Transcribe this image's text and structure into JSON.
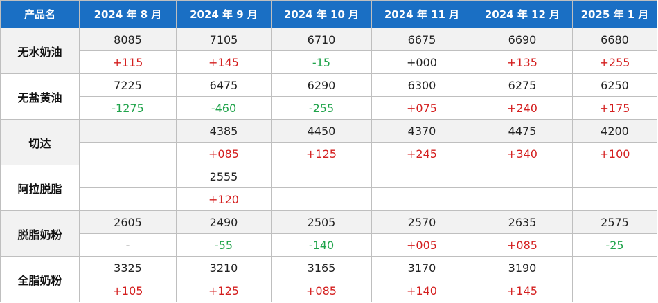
{
  "table": {
    "header": [
      "产品名",
      "2024 年 8 月",
      "2024 年 9 月",
      "2024 年 10 月",
      "2024 年 11 月",
      "2024 年 12 月",
      "2025 年 1 月"
    ],
    "rows": [
      {
        "name": "无水奶油",
        "prices": [
          "8085",
          "7105",
          "6710",
          "6675",
          "6690",
          "6680"
        ],
        "changes": [
          "+115",
          "+145",
          "-15",
          "+000",
          "+135",
          "+255"
        ]
      },
      {
        "name": "无盐黄油",
        "prices": [
          "7225",
          "6475",
          "6290",
          "6300",
          "6275",
          "6250"
        ],
        "changes": [
          "-1275",
          "-460",
          "-255",
          "+075",
          "+240",
          "+175"
        ]
      },
      {
        "name": "切达",
        "prices": [
          "",
          "4385",
          "4450",
          "4370",
          "4475",
          "4200"
        ],
        "changes": [
          "",
          "+085",
          "+125",
          "+245",
          "+340",
          "+100"
        ]
      },
      {
        "name": "阿拉脱脂",
        "prices": [
          "",
          "2555",
          "",
          "",
          "",
          ""
        ],
        "changes": [
          "",
          "+120",
          "",
          "",
          "",
          ""
        ]
      },
      {
        "name": "脱脂奶粉",
        "prices": [
          "2605",
          "2490",
          "2505",
          "2570",
          "2635",
          "2575"
        ],
        "changes": [
          "-",
          "-55",
          "-140",
          "+005",
          "+085",
          "-25"
        ]
      },
      {
        "name": "全脂奶粉",
        "prices": [
          "3325",
          "3210",
          "3165",
          "3170",
          "3190",
          ""
        ],
        "changes": [
          "+105",
          "+125",
          "+085",
          "+140",
          "+145",
          ""
        ]
      }
    ]
  },
  "colors": {
    "header_bg": "#1a6fc4",
    "up": "#d41f1f",
    "down": "#1fa34a",
    "band": "#f2f2f2"
  }
}
